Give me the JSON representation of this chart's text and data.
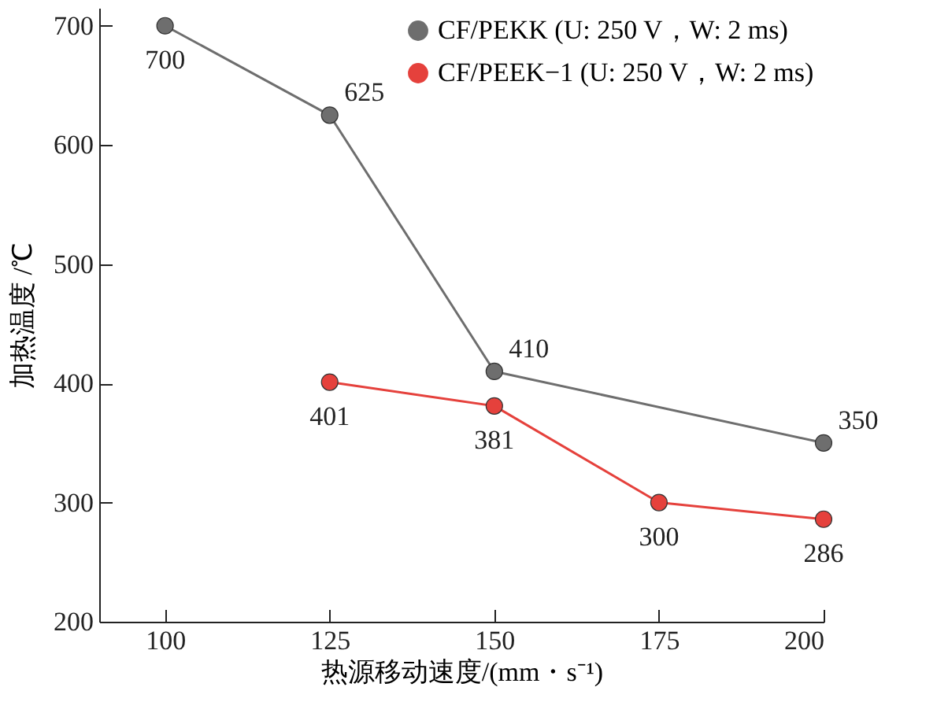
{
  "chart_data": {
    "type": "line",
    "xlabel": "热源移动速度/(mm・s⁻¹)",
    "ylabel": "加热温度 /℃",
    "xlim": [
      90,
      200
    ],
    "xticks": [
      100,
      125,
      150,
      175,
      200
    ],
    "ylim": [
      200,
      715
    ],
    "yticks": [
      200,
      300,
      400,
      500,
      600,
      700
    ],
    "grid": false,
    "legend": "top right",
    "marker": "circle",
    "data_labels": true,
    "series": [
      {
        "name": "CF/PEKK (U: 250 V，W: 2 ms)",
        "color": "#6e6e6e",
        "x": [
          100,
          125,
          150,
          200
        ],
        "values": [
          700,
          625,
          410,
          350
        ]
      },
      {
        "name": "CF/PEEK−1 (U: 250 V，W: 2 ms)",
        "color": "#e5413c",
        "x": [
          125,
          150,
          175,
          200
        ],
        "values": [
          401,
          381,
          300,
          286
        ]
      }
    ]
  }
}
